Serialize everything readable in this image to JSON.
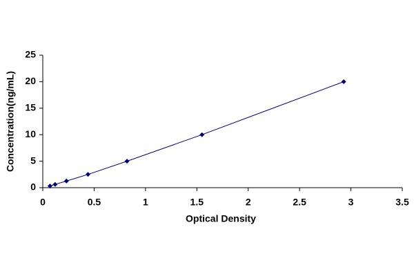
{
  "chart_data": {
    "type": "line",
    "x_label": "Optical Density",
    "y_label": "Concentration(ng/mL)",
    "x": [
      0.07,
      0.12,
      0.23,
      0.44,
      0.82,
      1.55,
      2.93
    ],
    "series": [
      {
        "color": "#000080",
        "values": [
          0.31,
          0.625,
          1.25,
          2.5,
          5,
          10,
          20
        ]
      }
    ],
    "xlim": [
      0,
      3.5
    ],
    "xticks": [
      0,
      0.5,
      1,
      1.5,
      2,
      2.5,
      3,
      3.5
    ],
    "ylim": [
      0,
      25
    ],
    "yticks": [
      0,
      5,
      10,
      15,
      20,
      25
    ],
    "grid": false,
    "markers": true
  }
}
